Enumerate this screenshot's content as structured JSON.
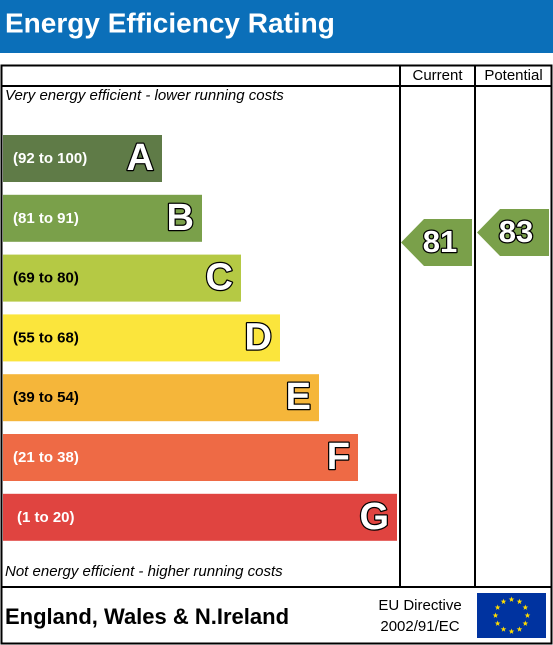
{
  "header": {
    "title": "Energy Efficiency Rating"
  },
  "columns": [
    "Current",
    "Potential"
  ],
  "top_note": "Very energy efficient - lower running costs",
  "bottom_note": "Not energy efficient - higher running costs",
  "bands": [
    {
      "range": "(92 to 100)",
      "letter": "A"
    },
    {
      "range": "(81 to 91)",
      "letter": "B"
    },
    {
      "range": "(69 to 80)",
      "letter": "C"
    },
    {
      "range": "(55 to 68)",
      "letter": "D"
    },
    {
      "range": "(39 to 54)",
      "letter": "E"
    },
    {
      "range": "(21 to 38)",
      "letter": "F"
    },
    {
      "range": "(1 to 20)",
      "letter": "G"
    }
  ],
  "current": {
    "value": 81
  },
  "potential": {
    "value": 83
  },
  "footer": {
    "region": "England, Wales & N.Ireland",
    "directive": [
      "EU Directive",
      "2002/91/EC"
    ]
  }
}
